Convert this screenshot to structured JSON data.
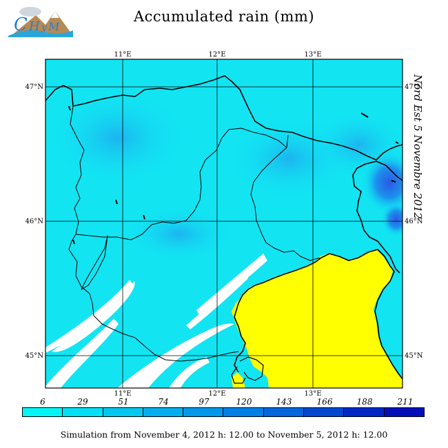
{
  "header": {
    "title": "Accumulated rain (mm)",
    "logo_text": "CHyM"
  },
  "map": {
    "side_label": "Nord Est 5 Novembre 2012",
    "lon_ticks": [
      "11°E",
      "12°E",
      "13°E"
    ],
    "lat_ticks": [
      "47°N",
      "46°N",
      "45°N"
    ],
    "colors": {
      "field": "#12e4f2",
      "field_dark": "#1fb8ee",
      "field_heavy": "#2a60e6",
      "sea_mask": "#ffff00",
      "no_rain": "#ffffff",
      "border": "#000000"
    }
  },
  "legend": {
    "values": [
      "6",
      "29",
      "51",
      "74",
      "97",
      "120",
      "143",
      "166",
      "188",
      "211"
    ],
    "colors": [
      "#00f6f6",
      "#00e0f4",
      "#00c8f0",
      "#00b0ee",
      "#0098ea",
      "#0080e4",
      "#0066dc",
      "#0048d0",
      "#0028c4",
      "#0010b8"
    ]
  },
  "footer": {
    "caption": "Simulation from November 4, 2012 h: 12.00 to November 5, 2012 h: 12.00"
  }
}
